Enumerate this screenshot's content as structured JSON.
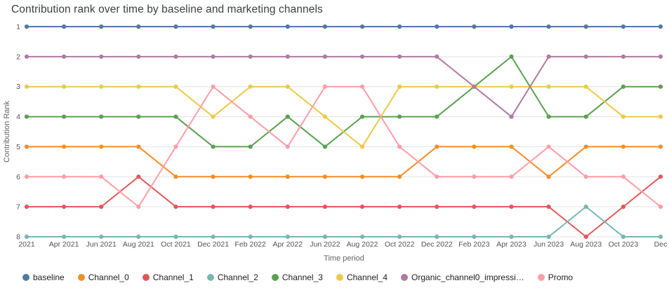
{
  "chart_data": {
    "type": "line",
    "title": "Contribution rank over time by baseline and marketing channels",
    "xlabel": "Time period",
    "ylabel": "Contribution Rank",
    "x_labels": [
      "2021",
      "Apr 2021",
      "Jun 2021",
      "Aug 2021",
      "Oct 2021",
      "Dec 2021",
      "Feb 2022",
      "Apr 2022",
      "Jun 2022",
      "Aug 2022",
      "Oct 2022",
      "Dec 2022",
      "Feb 2023",
      "Apr 2023",
      "Jun 2023",
      "Aug 2023",
      "Oct 2023",
      "Dec"
    ],
    "y_ticks": [
      1,
      2,
      3,
      4,
      5,
      6,
      7,
      8
    ],
    "ylim": [
      1,
      8
    ],
    "y_axis_inverted": true,
    "grid": "horizontal",
    "marker": "circle",
    "legend_position": "bottom",
    "series": [
      {
        "key": "baseline",
        "label": "baseline",
        "color": "#4e79a7",
        "values": [
          1,
          1,
          1,
          1,
          1,
          1,
          1,
          1,
          1,
          1,
          1,
          1,
          1,
          1,
          1,
          1,
          1,
          1
        ]
      },
      {
        "key": "channel_0",
        "label": "Channel_0",
        "color": "#f28e2b",
        "values": [
          5,
          5,
          5,
          5,
          6,
          6,
          6,
          6,
          6,
          6,
          6,
          5,
          5,
          5,
          6,
          5,
          5,
          5
        ]
      },
      {
        "key": "channel_1",
        "label": "Channel_1",
        "color": "#e15759",
        "values": [
          7,
          7,
          7,
          6,
          7,
          7,
          7,
          7,
          7,
          7,
          7,
          7,
          7,
          7,
          7,
          8,
          7,
          6
        ]
      },
      {
        "key": "channel_2",
        "label": "Channel_2",
        "color": "#76b7b2",
        "values": [
          8,
          8,
          8,
          8,
          8,
          8,
          8,
          8,
          8,
          8,
          8,
          8,
          8,
          8,
          8,
          7,
          8,
          8
        ]
      },
      {
        "key": "channel_3",
        "label": "Channel_3",
        "color": "#59a14f",
        "values": [
          4,
          4,
          4,
          4,
          4,
          5,
          5,
          4,
          5,
          4,
          4,
          4,
          3,
          2,
          4,
          4,
          3,
          3
        ]
      },
      {
        "key": "channel_4",
        "label": "Channel_4",
        "color": "#edc949",
        "values": [
          3,
          3,
          3,
          3,
          3,
          4,
          3,
          3,
          4,
          5,
          3,
          3,
          3,
          3,
          3,
          3,
          4,
          4
        ]
      },
      {
        "key": "organic_channel0_impressions",
        "label": "Organic_channel0_impressi…",
        "color": "#b07aa1",
        "values": [
          2,
          2,
          2,
          2,
          2,
          2,
          2,
          2,
          2,
          2,
          2,
          2,
          3,
          4,
          2,
          2,
          2,
          2
        ]
      },
      {
        "key": "promo",
        "label": "Promo",
        "color": "#ff9da7",
        "values": [
          6,
          6,
          6,
          7,
          5,
          3,
          4,
          5,
          3,
          3,
          5,
          6,
          6,
          6,
          5,
          6,
          6,
          7
        ]
      }
    ]
  }
}
